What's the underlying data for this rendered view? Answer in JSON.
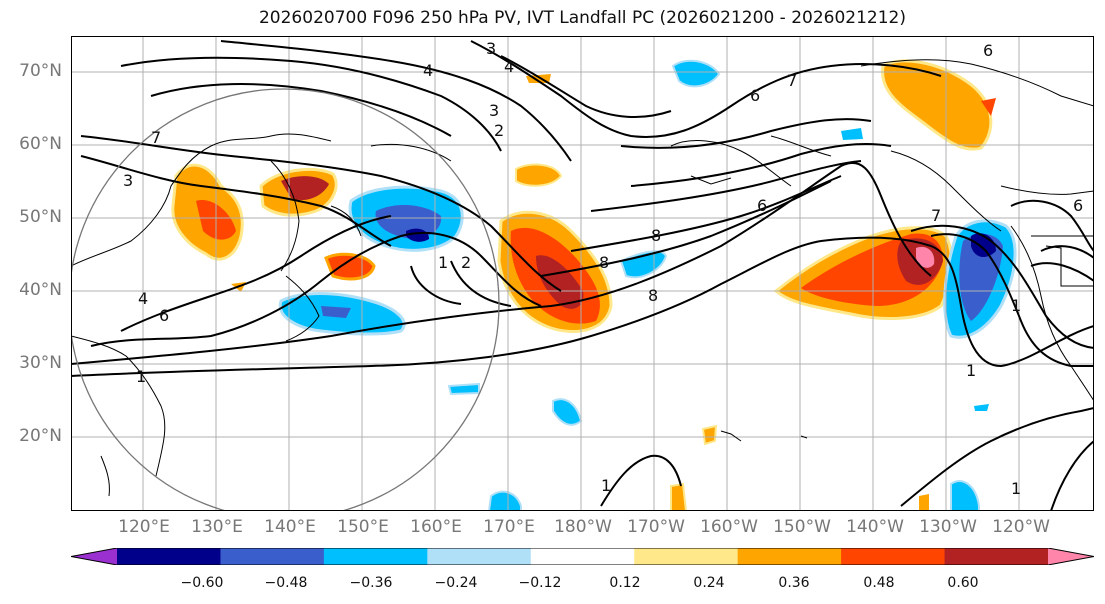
{
  "title": "2026020700 F096 250 hPa PV, IVT Landfall PC (2026021200 - 2026021212)",
  "latitude_labels": [
    "70°N",
    "60°N",
    "50°N",
    "40°N",
    "30°N",
    "20°N"
  ],
  "longitude_labels": [
    "120°E",
    "130°E",
    "140°E",
    "150°E",
    "160°E",
    "170°E",
    "180°W",
    "170°W",
    "160°W",
    "150°W",
    "140°W",
    "130°W",
    "120°W"
  ],
  "contour_labels": [
    "3",
    "4",
    "4",
    "3",
    "2",
    "7",
    "6",
    "6",
    "8",
    "7",
    "3",
    "4",
    "6",
    "1",
    "2",
    "8",
    "8",
    "1",
    "1",
    "6",
    "6",
    "1",
    "7",
    "1",
    "1"
  ],
  "colorbar": {
    "tick_labels": [
      "−0.60",
      "−0.48",
      "−0.36",
      "−0.24",
      "−0.12",
      "0.12",
      "0.24",
      "0.36",
      "0.48",
      "0.60"
    ],
    "colors": [
      "#9b30d0",
      "#00008b",
      "#3a5fcd",
      "#00bfff",
      "#b0e0f8",
      "#ffffff",
      "#ffe88a",
      "#ffa500",
      "#ff4500",
      "#b22222",
      "#ff85aa"
    ]
  }
}
